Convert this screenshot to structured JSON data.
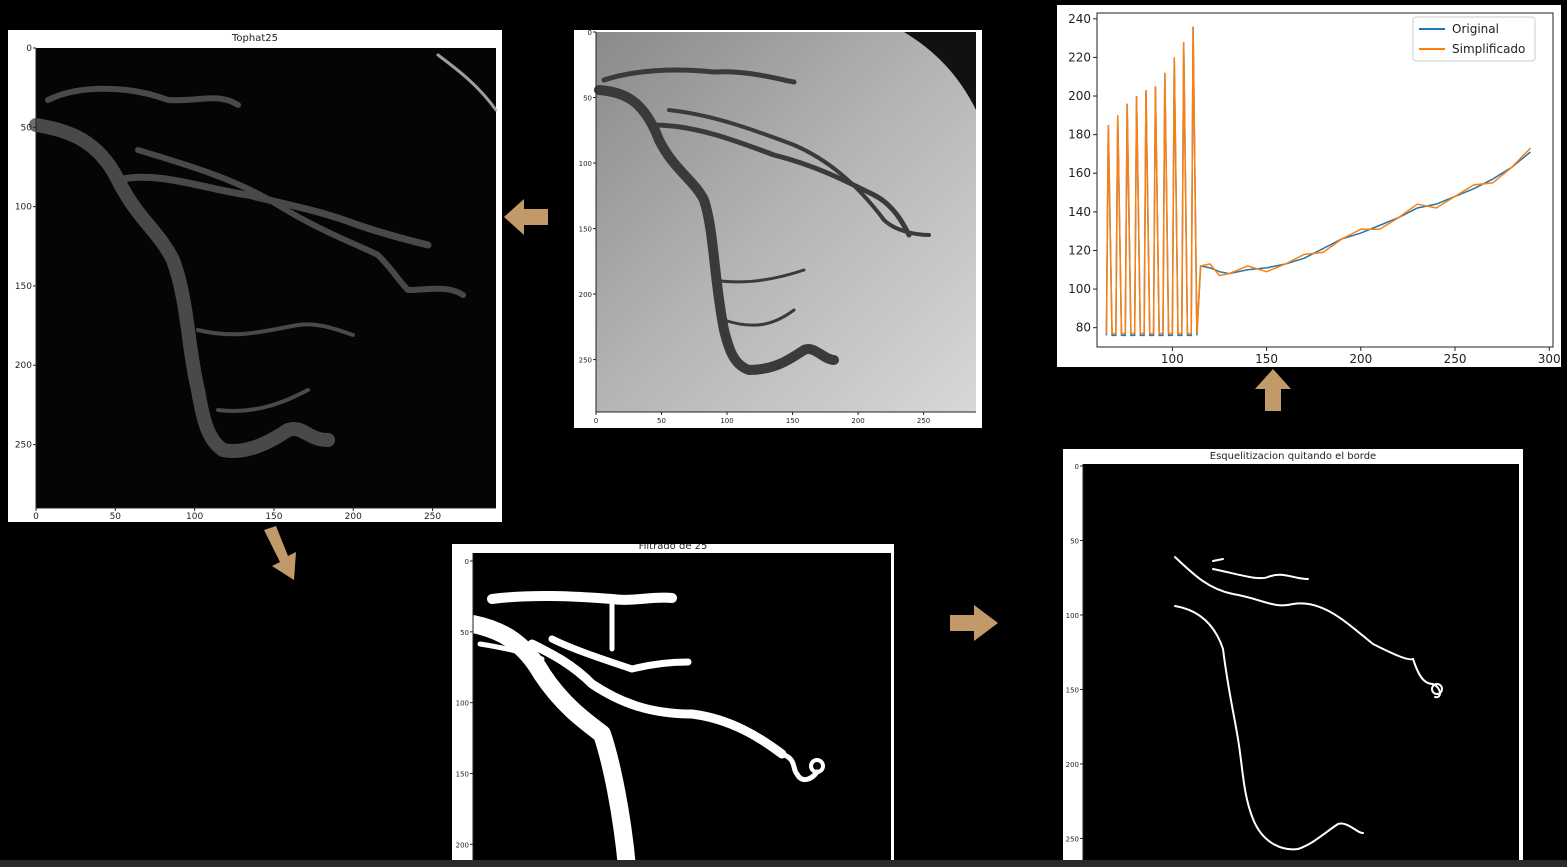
{
  "panels": {
    "tophat": {
      "title": "Tophat25",
      "x_ticks": [
        "0",
        "50",
        "100",
        "150",
        "200",
        "250"
      ],
      "y_ticks": [
        "0",
        "50",
        "100",
        "150",
        "200",
        "250"
      ]
    },
    "original": {
      "title": "",
      "x_ticks": [
        "0",
        "50",
        "100",
        "150",
        "200",
        "250"
      ],
      "y_ticks": [
        "0",
        "50",
        "100",
        "150",
        "200",
        "250"
      ]
    },
    "filtrado": {
      "title": "Filtrado de 25",
      "y_ticks": [
        "0",
        "50",
        "100",
        "150",
        "200"
      ]
    },
    "esqueleto": {
      "title": "Esquelitizacion quitando el borde",
      "y_ticks": [
        "0",
        "50",
        "100",
        "150",
        "200",
        "250"
      ]
    }
  },
  "chart_data": {
    "type": "line",
    "title": "",
    "xlabel": "",
    "ylabel": "",
    "xlim": [
      60,
      302
    ],
    "ylim": [
      70,
      243
    ],
    "x_ticks": [
      100,
      150,
      200,
      250,
      300
    ],
    "y_ticks": [
      80,
      100,
      120,
      140,
      160,
      180,
      200,
      220,
      240
    ],
    "legend_position": "top-right",
    "series": [
      {
        "name": "Original",
        "color": "#1f77b4",
        "x": [
          65,
          70,
          75,
          80,
          85,
          90,
          95,
          100,
          105,
          110,
          115,
          120,
          125,
          130,
          140,
          150,
          160,
          170,
          180,
          190,
          200,
          210,
          220,
          230,
          240,
          250,
          260,
          270,
          280,
          290
        ],
        "y": [
          185,
          190,
          196,
          200,
          203,
          205,
          212,
          220,
          228,
          236,
          112,
          111,
          109,
          108,
          110,
          111,
          113,
          116,
          121,
          126,
          129,
          133,
          137,
          142,
          144,
          148,
          152,
          157,
          163,
          171
        ]
      },
      {
        "name": "Simplificado",
        "color": "#ff7f0e",
        "x": [
          65,
          70,
          75,
          80,
          85,
          90,
          95,
          100,
          105,
          110,
          115,
          120,
          125,
          130,
          140,
          150,
          160,
          170,
          180,
          190,
          200,
          210,
          220,
          230,
          240,
          250,
          260,
          270,
          280,
          290
        ],
        "y": [
          185,
          190,
          196,
          200,
          203,
          205,
          212,
          220,
          228,
          236,
          112,
          111,
          109,
          108,
          110,
          111,
          113,
          116,
          121,
          126,
          129,
          133,
          137,
          142,
          144,
          148,
          152,
          157,
          163,
          171
        ]
      }
    ],
    "oscillation_low": 76,
    "oscillation_x_range": [
      65,
      110
    ]
  }
}
